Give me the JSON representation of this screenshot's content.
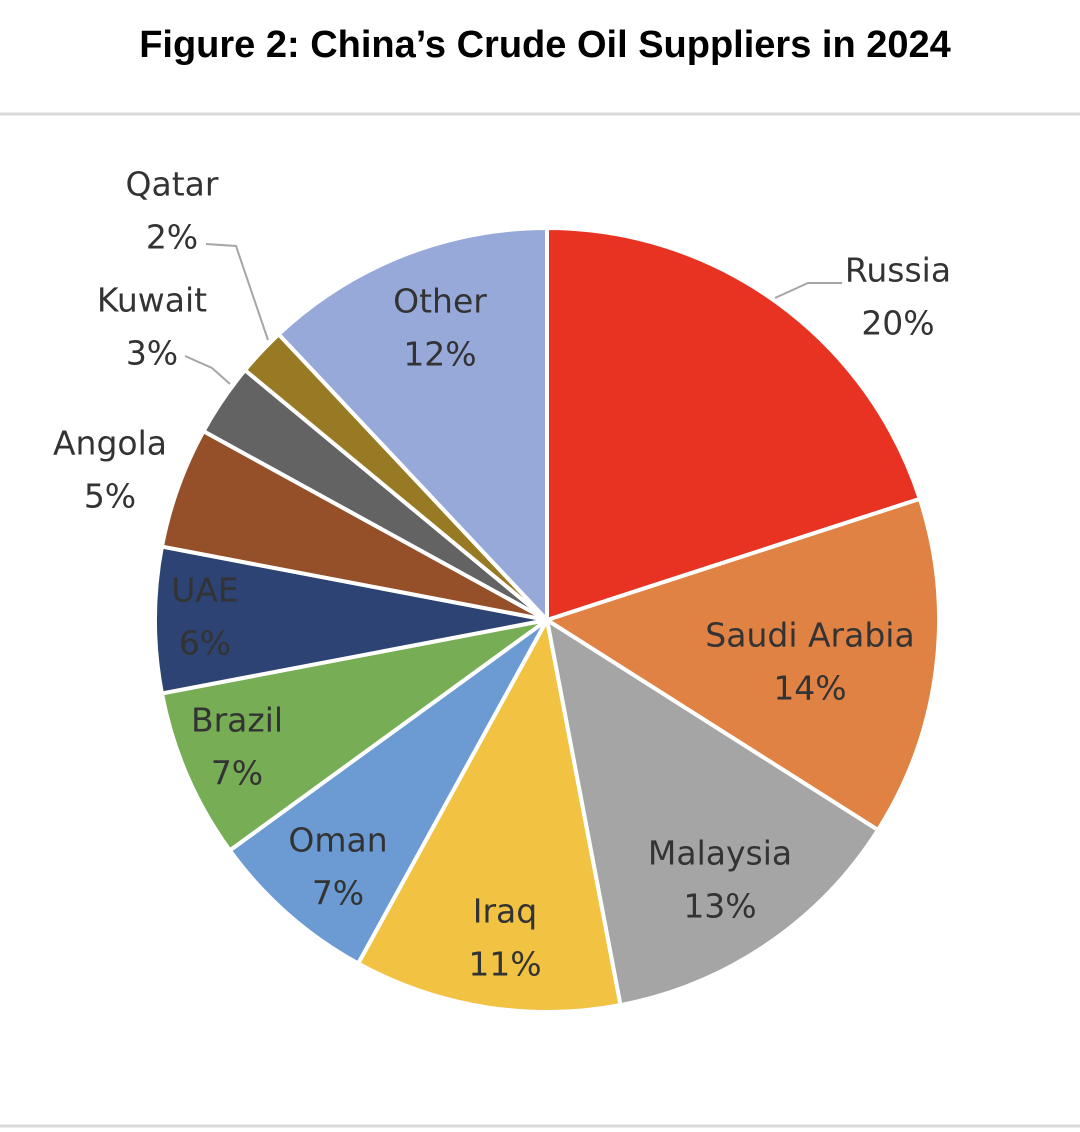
{
  "chart_data": {
    "type": "pie",
    "title": "Figure 2: China’s Crude Oil Suppliers in 2024",
    "categories": [
      "Russia",
      "Saudi Arabia",
      "Malaysia",
      "Iraq",
      "Oman",
      "Brazil",
      "UAE",
      "Angola",
      "Kuwait",
      "Qatar",
      "Other"
    ],
    "values": [
      20,
      14,
      13,
      11,
      7,
      7,
      6,
      5,
      3,
      2,
      12
    ],
    "value_labels": [
      "20%",
      "14%",
      "13%",
      "11%",
      "7%",
      "7%",
      "6%",
      "5%",
      "3%",
      "2%",
      "12%"
    ],
    "colors": [
      "#e83323",
      "#df8244",
      "#a5a5a5",
      "#f2c243",
      "#6b9bd2",
      "#77ad55",
      "#2c4373",
      "#95502a",
      "#636363",
      "#997a24",
      "#97a9d9"
    ]
  }
}
